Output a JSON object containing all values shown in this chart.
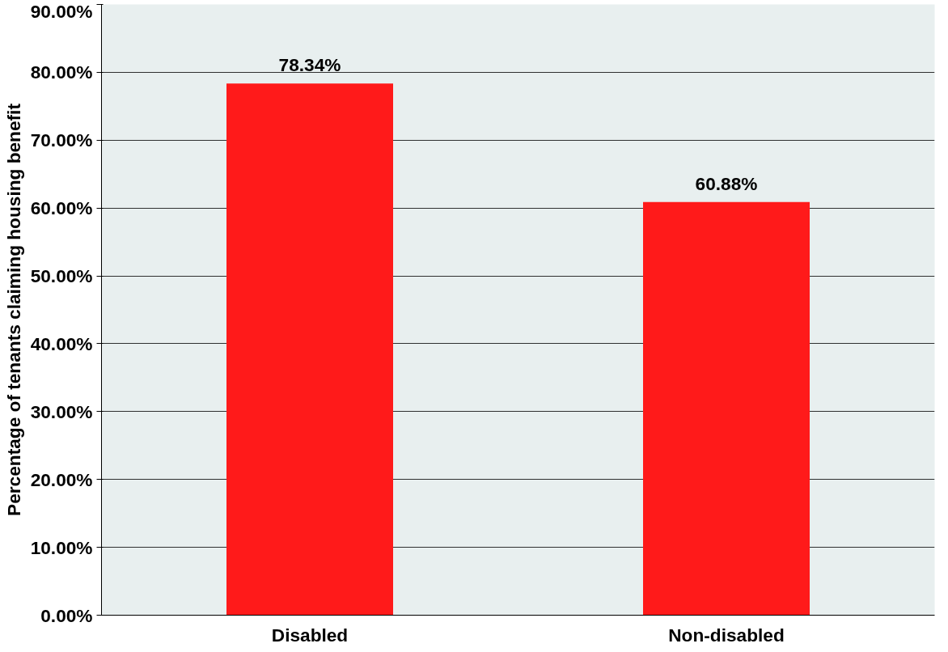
{
  "chart_data": {
    "type": "bar",
    "ylabel": "Percentage of tenants claiming housing benefit",
    "categories": [
      "Disabled",
      "Non-disabled"
    ],
    "values": [
      78.34,
      60.88
    ],
    "value_labels": [
      "78.34%",
      "60.88%"
    ],
    "color": "#ff1a1a",
    "ylim": [
      0,
      90
    ],
    "yticks": [
      {
        "value": 0,
        "label": "0.00%"
      },
      {
        "value": 10,
        "label": "10.00%"
      },
      {
        "value": 20,
        "label": "20.00%"
      },
      {
        "value": 30,
        "label": "30.00%"
      },
      {
        "value": 40,
        "label": "40.00%"
      },
      {
        "value": 50,
        "label": "50.00%"
      },
      {
        "value": 60,
        "label": "60.00%"
      },
      {
        "value": 70,
        "label": "70.00%"
      },
      {
        "value": 80,
        "label": "80.00%"
      },
      {
        "value": 90,
        "label": "90.00%"
      }
    ],
    "grid": "y"
  }
}
